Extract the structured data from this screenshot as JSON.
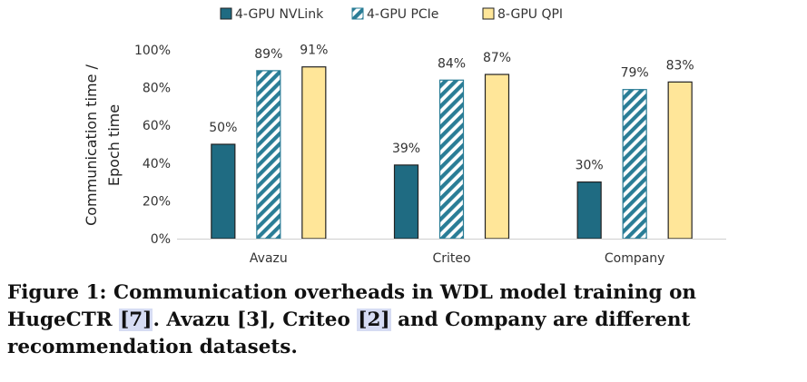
{
  "chart_data": {
    "type": "bar",
    "categories": [
      "Avazu",
      "Criteo",
      "Company"
    ],
    "series": [
      {
        "name": "4-GPU NVLink",
        "values": [
          50,
          39,
          30
        ],
        "labels": [
          "50%",
          "39%",
          "30%"
        ],
        "color": "#1f6b82",
        "pattern": "solid"
      },
      {
        "name": "4-GPU PCIe",
        "values": [
          89,
          84,
          79
        ],
        "labels": [
          "89%",
          "84%",
          "79%"
        ],
        "color": "#2a7d96",
        "pattern": "hatch"
      },
      {
        "name": "8-GPU QPI",
        "values": [
          91,
          87,
          83
        ],
        "labels": [
          "91%",
          "87%",
          "83%"
        ],
        "color": "#ffe699",
        "pattern": "solid"
      }
    ],
    "ylabel_line1": "Communication time /",
    "ylabel_line2": "Epoch time",
    "ylim": [
      0,
      100
    ],
    "yticks": [
      "0%",
      "20%",
      "40%",
      "60%",
      "80%",
      "100%"
    ],
    "legend_position": "top",
    "grid": false
  },
  "caption": {
    "label": "Figure 1:",
    "text1": " Communication overheads in WDL model training on HugeCTR ",
    "ref1": "[7]",
    "text2": ". Avazu [3], Criteo ",
    "ref2": "[2]",
    "text3": " and Company are different recommendation datasets."
  }
}
